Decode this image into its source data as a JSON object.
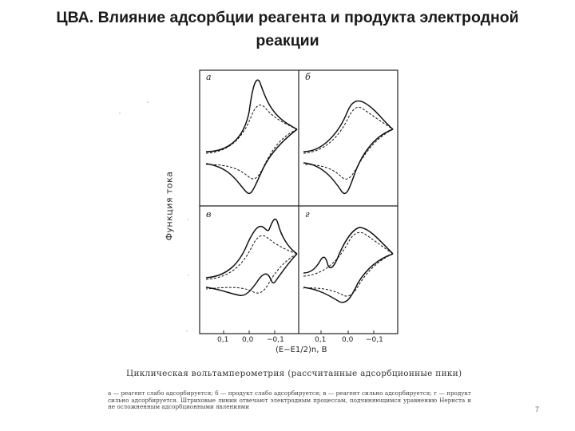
{
  "slide": {
    "title": "ЦВА. Влияние адсорбции реагента и продукта электродной реакции",
    "page_number": "7"
  },
  "figure": {
    "y_axis_label": "Функция тока",
    "x_axis_label": "(E−E1/2)n, В",
    "x_ticks": [
      "0,1",
      "0,0",
      "−0,1"
    ],
    "panels": [
      "а",
      "б",
      "в",
      "г"
    ],
    "caption": "Циклическая вольтамперометрия    (рассчитанные    адсорбционные пики)",
    "caption_note": "а — реагент слабо адсорбируется; б — продукт слабо адсорбируется; в — реагент сильно адсорбируется; г — продукт сильно адсорбируется. Штриховые линии отвечают электродным процессам, подчиняющимся уравнению Нернста и не осложненным адсорбционными явлениями"
  }
}
